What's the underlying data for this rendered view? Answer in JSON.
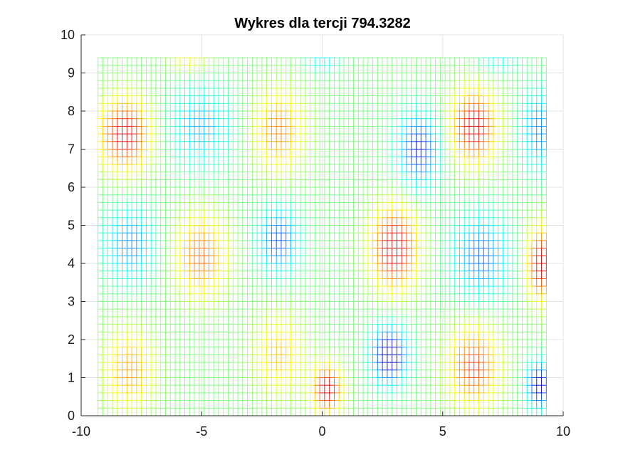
{
  "chart_data": {
    "type": "heatmap",
    "render_style": "mesh",
    "title": "Wykres dla tercji 794.3282",
    "xlabel": "",
    "ylabel": "",
    "xlim": [
      -10,
      10
    ],
    "ylim": [
      0,
      10
    ],
    "x_ticks": [
      -10,
      -5,
      0,
      5,
      10
    ],
    "y_ticks": [
      0,
      1,
      2,
      3,
      4,
      5,
      6,
      7,
      8,
      9,
      10
    ],
    "grid": true,
    "box": true,
    "colormap": "jet",
    "color_range": [
      -1.2,
      1.2
    ],
    "x_range": [
      -9.3,
      9.3
    ],
    "y_range": [
      0,
      9.4
    ],
    "mesh_step": 0.2,
    "field": {
      "description_units": "relative amplitude",
      "components": [
        {
          "amplitude": 0.55,
          "kx": 0.94,
          "phase_x": 1.5708,
          "ky": 1.05,
          "phase_y": 1.5708
        },
        {
          "amplitude": 0.55,
          "ky": 1.05,
          "phase_y": 1.5708,
          "kx": 0.0,
          "phase_x": 0.0
        }
      ],
      "blobs": [
        {
          "x": -8.2,
          "y": 7.4,
          "value": 1.0,
          "sx": 1.0,
          "sy": 0.9
        },
        {
          "x": -5.0,
          "y": 7.6,
          "value": -0.5,
          "sx": 1.2,
          "sy": 1.0
        },
        {
          "x": -1.8,
          "y": 7.5,
          "value": 0.6,
          "sx": 1.0,
          "sy": 1.0
        },
        {
          "x": 4.0,
          "y": 7.0,
          "value": -0.9,
          "sx": 0.8,
          "sy": 0.9
        },
        {
          "x": 6.3,
          "y": 7.6,
          "value": 1.0,
          "sx": 0.9,
          "sy": 0.9
        },
        {
          "x": 9.0,
          "y": 7.5,
          "value": -0.6,
          "sx": 0.7,
          "sy": 1.0
        },
        {
          "x": -8.0,
          "y": 4.5,
          "value": -0.6,
          "sx": 1.0,
          "sy": 0.9
        },
        {
          "x": -5.0,
          "y": 4.2,
          "value": 0.7,
          "sx": 1.0,
          "sy": 1.0
        },
        {
          "x": -1.8,
          "y": 4.6,
          "value": -0.75,
          "sx": 0.8,
          "sy": 0.8
        },
        {
          "x": 3.0,
          "y": 4.4,
          "value": 1.1,
          "sx": 0.9,
          "sy": 1.0
        },
        {
          "x": 6.6,
          "y": 4.2,
          "value": -0.7,
          "sx": 1.1,
          "sy": 1.0
        },
        {
          "x": 9.1,
          "y": 4.0,
          "value": 1.0,
          "sx": 0.6,
          "sy": 0.9
        },
        {
          "x": -8.0,
          "y": 1.2,
          "value": 0.55,
          "sx": 1.0,
          "sy": 1.0
        },
        {
          "x": -1.8,
          "y": 1.6,
          "value": 0.45,
          "sx": 1.0,
          "sy": 1.0
        },
        {
          "x": 0.2,
          "y": 0.7,
          "value": 1.0,
          "sx": 0.6,
          "sy": 0.6
        },
        {
          "x": 2.8,
          "y": 1.6,
          "value": -1.2,
          "sx": 0.7,
          "sy": 0.7
        },
        {
          "x": 6.3,
          "y": 1.3,
          "value": 0.8,
          "sx": 1.0,
          "sy": 1.0
        },
        {
          "x": 9.0,
          "y": 0.8,
          "value": -1.0,
          "sx": 0.5,
          "sy": 0.6
        },
        {
          "x": 0.0,
          "y": 9.3,
          "value": -0.3,
          "sx": 0.7,
          "sy": 0.3
        },
        {
          "x": -5.5,
          "y": 9.3,
          "value": 0.3,
          "sx": 0.8,
          "sy": 0.3
        },
        {
          "x": 7.3,
          "y": 9.3,
          "value": -0.3,
          "sx": 0.8,
          "sy": 0.3
        }
      ]
    }
  }
}
